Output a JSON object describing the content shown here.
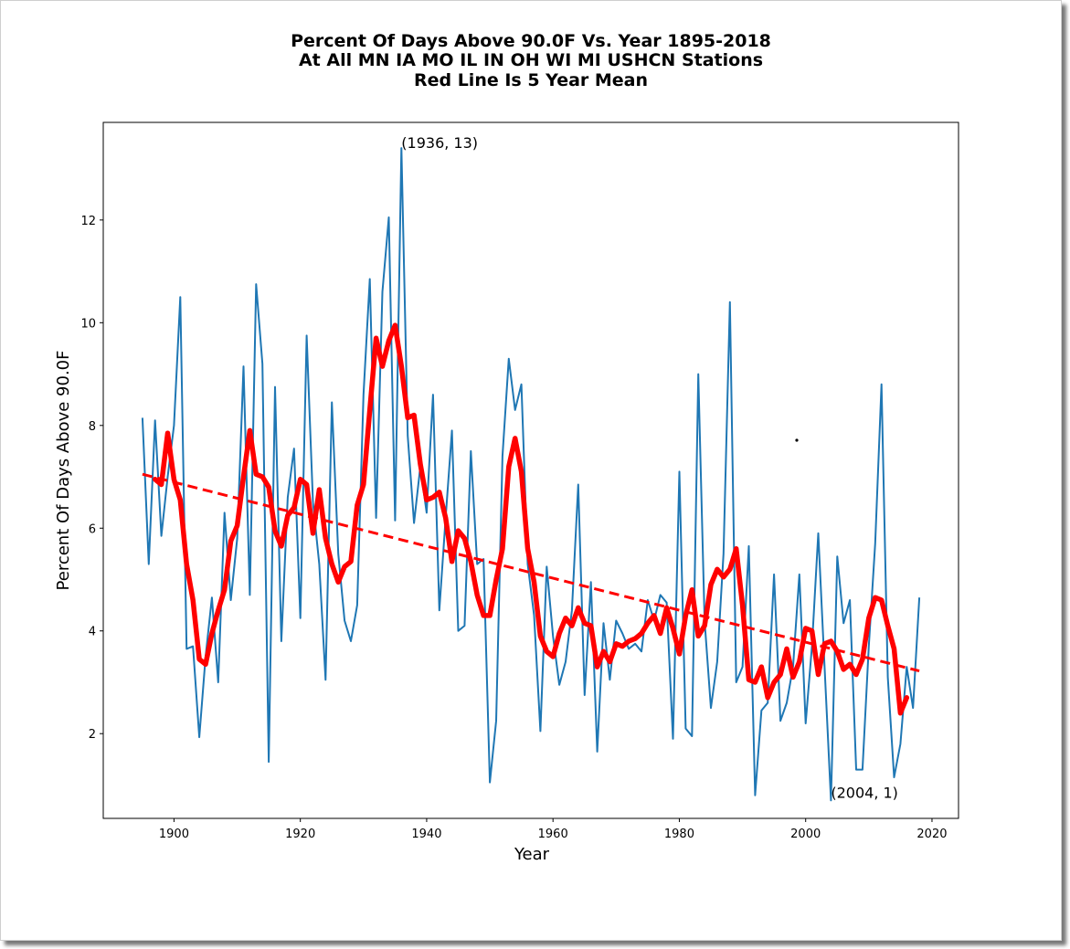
{
  "chart_data": {
    "type": "line",
    "title_lines": [
      "Percent Of Days Above 90.0F Vs. Year 1895-2018",
      "At All MN IA MO IL IN OH WI MI USHCN Stations",
      "Red Line Is 5 Year Mean"
    ],
    "xlabel": "Year",
    "ylabel": "Percent Of Days Above 90.0F",
    "xlim": [
      1888.8,
      2024.2
    ],
    "ylim": [
      0.35,
      13.9
    ],
    "xticks": [
      1900,
      1920,
      1940,
      1960,
      1980,
      2000,
      2020
    ],
    "yticks": [
      2,
      4,
      6,
      8,
      10,
      12
    ],
    "grid": false,
    "colors": {
      "annual": "#1f77b4",
      "mean": "#ff0000",
      "trend": "#ff0000"
    },
    "annotations": [
      {
        "text": "(1936, 13)",
        "x": 1936,
        "y": 13.4
      },
      {
        "text": "(2004, 1)",
        "x": 2004,
        "y": 0.75
      }
    ],
    "series": [
      {
        "role": "annual",
        "x": [
          1895,
          1896,
          1897,
          1898,
          1899,
          1900,
          1901,
          1902,
          1903,
          1904,
          1905,
          1906,
          1907,
          1908,
          1909,
          1910,
          1911,
          1912,
          1913,
          1914,
          1915,
          1916,
          1917,
          1918,
          1919,
          1920,
          1921,
          1922,
          1923,
          1924,
          1925,
          1926,
          1927,
          1928,
          1929,
          1930,
          1931,
          1932,
          1933,
          1934,
          1935,
          1936,
          1937,
          1938,
          1939,
          1940,
          1941,
          1942,
          1943,
          1944,
          1945,
          1946,
          1947,
          1948,
          1949,
          1950,
          1951,
          1952,
          1953,
          1954,
          1955,
          1956,
          1957,
          1958,
          1959,
          1960,
          1961,
          1962,
          1963,
          1964,
          1965,
          1966,
          1967,
          1968,
          1969,
          1970,
          1971,
          1972,
          1973,
          1974,
          1975,
          1976,
          1977,
          1978,
          1979,
          1980,
          1981,
          1982,
          1983,
          1984,
          1985,
          1986,
          1987,
          1988,
          1989,
          1990,
          1991,
          1992,
          1993,
          1994,
          1995,
          1996,
          1997,
          1998,
          1999,
          2000,
          2001,
          2002,
          2003,
          2004,
          2005,
          2006,
          2007,
          2008,
          2009,
          2010,
          2011,
          2012,
          2013,
          2014,
          2015,
          2016,
          2017,
          2018
        ],
        "values": [
          8.15,
          5.3,
          8.1,
          5.85,
          7.0,
          8.0,
          10.5,
          3.65,
          3.7,
          1.93,
          3.5,
          4.65,
          3.0,
          6.3,
          4.6,
          5.8,
          9.15,
          4.7,
          10.75,
          9.2,
          1.45,
          8.75,
          3.8,
          6.6,
          7.55,
          4.25,
          9.75,
          6.5,
          5.3,
          3.05,
          8.45,
          5.5,
          4.2,
          3.8,
          4.5,
          8.6,
          10.85,
          6.2,
          10.6,
          12.05,
          6.15,
          13.4,
          7.8,
          6.1,
          7.2,
          6.3,
          8.6,
          4.4,
          6.2,
          7.9,
          4.0,
          4.1,
          7.5,
          5.3,
          5.4,
          1.05,
          2.25,
          7.4,
          9.3,
          8.3,
          8.8,
          5.3,
          4.3,
          2.05,
          5.25,
          3.9,
          2.95,
          3.4,
          4.4,
          6.85,
          2.75,
          4.95,
          1.65,
          4.15,
          3.05,
          4.2,
          3.95,
          3.65,
          3.75,
          3.6,
          4.6,
          4.2,
          4.7,
          4.55,
          1.9,
          7.1,
          2.1,
          1.95,
          9.0,
          4.2,
          2.5,
          3.4,
          5.5,
          10.4,
          3.0,
          3.3,
          5.65,
          0.8,
          2.45,
          2.6,
          5.1,
          2.25,
          2.6,
          3.3,
          5.1,
          2.2,
          3.7,
          5.9,
          3.3,
          0.7,
          5.45,
          4.15,
          4.6,
          1.3,
          1.3,
          3.7,
          5.7,
          8.8,
          3.1,
          1.15,
          1.8,
          3.3,
          2.5,
          4.65
        ]
      },
      {
        "role": "5-year mean",
        "x": [
          1897,
          1898,
          1899,
          1900,
          1901,
          1902,
          1903,
          1904,
          1905,
          1906,
          1907,
          1908,
          1909,
          1910,
          1911,
          1912,
          1913,
          1914,
          1915,
          1916,
          1917,
          1918,
          1919,
          1920,
          1921,
          1922,
          1923,
          1924,
          1925,
          1926,
          1927,
          1928,
          1929,
          1930,
          1931,
          1932,
          1933,
          1934,
          1935,
          1936,
          1937,
          1938,
          1939,
          1940,
          1941,
          1942,
          1943,
          1944,
          1945,
          1946,
          1947,
          1948,
          1949,
          1950,
          1951,
          1952,
          1953,
          1954,
          1955,
          1956,
          1957,
          1958,
          1959,
          1960,
          1961,
          1962,
          1963,
          1964,
          1965,
          1966,
          1967,
          1968,
          1969,
          1970,
          1971,
          1972,
          1973,
          1974,
          1975,
          1976,
          1977,
          1978,
          1979,
          1980,
          1981,
          1982,
          1983,
          1984,
          1985,
          1986,
          1987,
          1988,
          1989,
          1990,
          1991,
          1992,
          1993,
          1994,
          1995,
          1996,
          1997,
          1998,
          1999,
          2000,
          2001,
          2002,
          2003,
          2004,
          2005,
          2006,
          2007,
          2008,
          2009,
          2010,
          2011,
          2012,
          2013,
          2014,
          2015,
          2016
        ],
        "values": [
          6.95,
          6.85,
          7.85,
          6.95,
          6.55,
          5.3,
          4.6,
          3.45,
          3.35,
          3.95,
          4.4,
          4.8,
          5.75,
          6.05,
          7.0,
          7.9,
          7.05,
          7.0,
          6.8,
          5.95,
          5.65,
          6.25,
          6.4,
          6.95,
          6.85,
          5.9,
          6.75,
          5.8,
          5.3,
          4.95,
          5.25,
          5.35,
          6.45,
          6.85,
          8.3,
          9.7,
          9.15,
          9.65,
          9.95,
          9.15,
          8.15,
          8.2,
          7.25,
          6.55,
          6.6,
          6.7,
          6.2,
          5.35,
          5.95,
          5.8,
          5.35,
          4.7,
          4.3,
          4.3,
          5.0,
          5.6,
          7.2,
          7.75,
          7.1,
          5.6,
          4.95,
          3.9,
          3.6,
          3.5,
          3.95,
          4.25,
          4.1,
          4.45,
          4.15,
          4.1,
          3.3,
          3.6,
          3.4,
          3.75,
          3.7,
          3.8,
          3.85,
          3.95,
          4.15,
          4.3,
          3.95,
          4.45,
          4.05,
          3.55,
          4.3,
          4.8,
          3.9,
          4.1,
          4.9,
          5.2,
          5.05,
          5.2,
          5.6,
          4.5,
          3.05,
          3.0,
          3.3,
          2.7,
          3.0,
          3.15,
          3.65,
          3.1,
          3.4,
          4.05,
          4.0,
          3.15,
          3.75,
          3.8,
          3.6,
          3.25,
          3.35,
          3.15,
          3.45,
          4.25,
          4.65,
          4.6,
          4.1,
          3.65,
          2.4,
          2.7
        ]
      },
      {
        "role": "trend",
        "x": [
          1895,
          2018
        ],
        "values": [
          7.05,
          3.22
        ]
      }
    ]
  }
}
